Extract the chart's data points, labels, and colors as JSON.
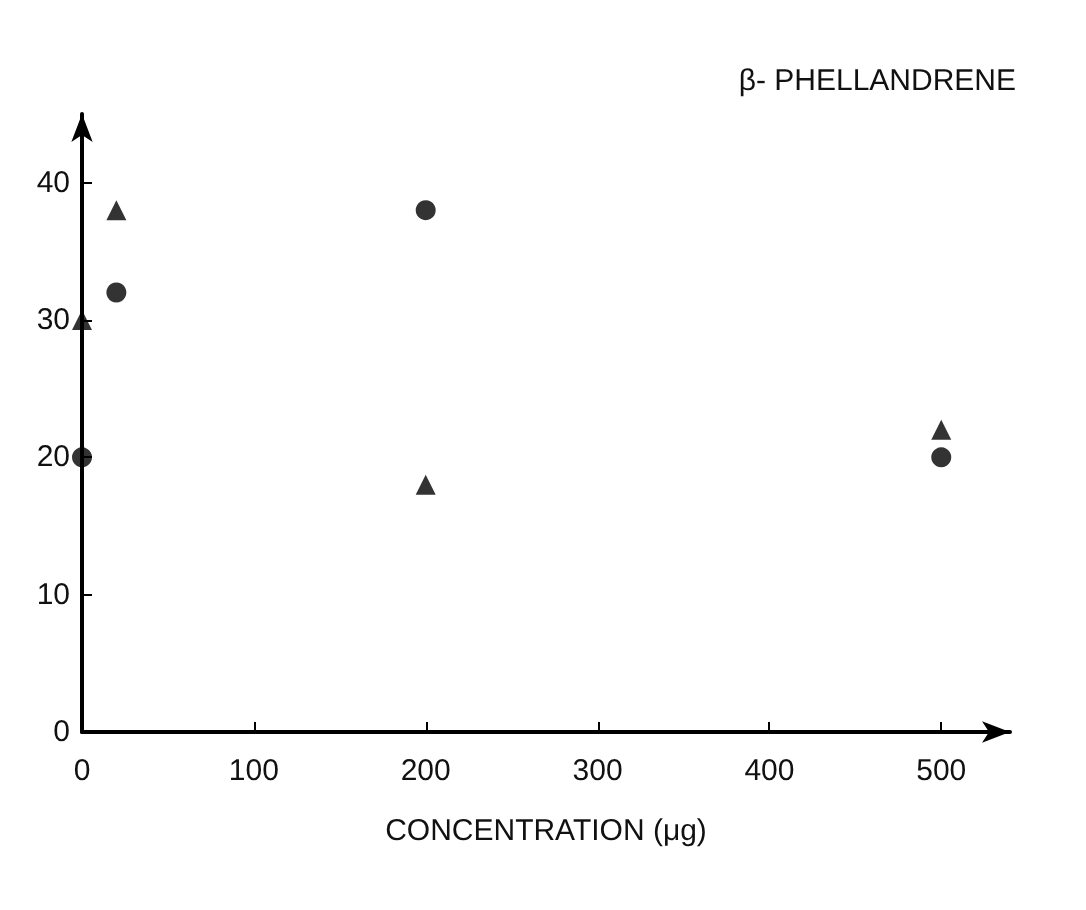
{
  "chart_data": {
    "type": "scatter",
    "title": "β- PHELLANDRENE",
    "xlabel": "CONCENTRATION (μg)",
    "series": [
      {
        "color": "#000000",
        "marker": "circle",
        "x": [
          0,
          20,
          200,
          500
        ],
        "values": [
          20,
          32,
          38,
          20
        ]
      },
      {
        "color": "#000000",
        "marker": "triangle",
        "x": [
          0,
          20,
          200,
          500
        ],
        "values": [
          30,
          38,
          18,
          22
        ]
      }
    ],
    "xlim": [
      0,
      540
    ],
    "xticks": [
      0,
      100,
      200,
      300,
      400,
      500
    ],
    "ylim": [
      0,
      45
    ],
    "yticks": [
      0,
      10,
      20,
      30,
      40
    ],
    "grid": false
  }
}
